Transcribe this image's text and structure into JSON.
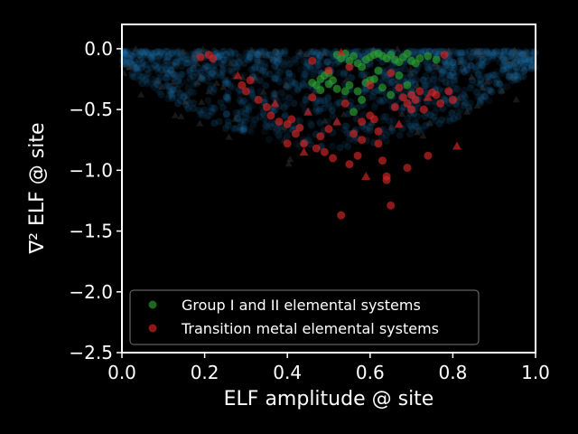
{
  "chart_data": {
    "type": "scatter",
    "xlabel": "ELF amplitude @ site",
    "ylabel": "∇² ELF @ site",
    "xlim": [
      0.0,
      1.0
    ],
    "ylim": [
      -2.5,
      0.2
    ],
    "xticks": [
      "0.0",
      "0.2",
      "0.4",
      "0.6",
      "0.8",
      "1.0"
    ],
    "yticks": [
      "0.0",
      "−0.5",
      "−1.0",
      "−1.5",
      "−2.0",
      "−2.5"
    ],
    "grid": false,
    "legend_position": "lower-center",
    "legend": [
      {
        "label": "Group I and II elemental systems",
        "color": "#2ca02c"
      },
      {
        "label": "Transition metal elemental systems",
        "color": "#d62728"
      }
    ],
    "background_cloud": {
      "color": "#1f77b4"
    },
    "series": [
      {
        "name": "Group I and II elemental systems",
        "color": "#2ca02c",
        "x": [
          0.52,
          0.53,
          0.54,
          0.55,
          0.56,
          0.57,
          0.58,
          0.59,
          0.6,
          0.61,
          0.62,
          0.63,
          0.64,
          0.65,
          0.66,
          0.67,
          0.68,
          0.69,
          0.7,
          0.71,
          0.72,
          0.74,
          0.76,
          0.49,
          0.48,
          0.47,
          0.46,
          0.5,
          0.51,
          0.55,
          0.57,
          0.59,
          0.61,
          0.63,
          0.65,
          0.67,
          0.69,
          0.58,
          0.6,
          0.62,
          0.56,
          0.54,
          0.52,
          0.5,
          0.48
        ],
        "y": [
          -0.05,
          -0.08,
          -0.04,
          -0.1,
          -0.06,
          -0.12,
          -0.15,
          -0.09,
          -0.07,
          -0.05,
          -0.04,
          -0.06,
          -0.08,
          -0.05,
          -0.09,
          -0.11,
          -0.07,
          -0.04,
          -0.1,
          -0.12,
          -0.08,
          -0.06,
          -0.09,
          -0.22,
          -0.25,
          -0.3,
          -0.28,
          -0.2,
          -0.26,
          -0.3,
          -0.35,
          -0.28,
          -0.25,
          -0.32,
          -0.38,
          -0.22,
          -0.3,
          -0.42,
          -0.26,
          -0.18,
          -0.52,
          -0.35,
          -0.33,
          -0.29,
          -0.34
        ]
      },
      {
        "name": "Transition metal elemental systems",
        "color": "#d62728",
        "x": [
          0.19,
          0.21,
          0.22,
          0.28,
          0.29,
          0.3,
          0.31,
          0.33,
          0.35,
          0.36,
          0.37,
          0.38,
          0.4,
          0.41,
          0.42,
          0.43,
          0.44,
          0.45,
          0.46,
          0.47,
          0.48,
          0.49,
          0.5,
          0.51,
          0.52,
          0.53,
          0.54,
          0.55,
          0.56,
          0.57,
          0.58,
          0.59,
          0.6,
          0.62,
          0.63,
          0.64,
          0.65,
          0.66,
          0.67,
          0.68,
          0.69,
          0.7,
          0.71,
          0.72,
          0.73,
          0.74,
          0.75,
          0.76,
          0.77,
          0.78,
          0.79,
          0.8,
          0.81,
          0.55,
          0.6,
          0.65,
          0.7,
          0.58,
          0.62,
          0.53,
          0.46,
          0.5,
          0.74,
          0.64,
          0.69,
          0.4,
          0.44,
          0.61,
          0.67
        ],
        "y": [
          -0.07,
          -0.05,
          -0.08,
          -0.22,
          -0.3,
          -0.35,
          -0.26,
          -0.42,
          -0.48,
          -0.55,
          -0.45,
          -0.6,
          -0.62,
          -0.58,
          -0.7,
          -0.65,
          -0.78,
          -0.52,
          -0.4,
          -0.82,
          -0.72,
          -0.85,
          -0.66,
          -0.9,
          -0.6,
          -1.37,
          -0.45,
          -0.95,
          -0.7,
          -0.88,
          -0.75,
          -1.05,
          -0.55,
          -0.68,
          -0.92,
          -1.08,
          -1.29,
          -0.48,
          -0.62,
          -0.4,
          -0.45,
          -0.38,
          -0.42,
          -0.35,
          -0.5,
          -0.4,
          -0.36,
          -0.38,
          -0.45,
          -0.05,
          -0.35,
          -0.42,
          -0.8,
          -0.15,
          -0.3,
          -0.2,
          -0.5,
          -0.6,
          -0.78,
          -0.03,
          -0.1,
          -0.18,
          -0.88,
          -1.05,
          -0.98,
          -0.78,
          -0.85,
          -0.58,
          -0.32
        ]
      }
    ]
  }
}
